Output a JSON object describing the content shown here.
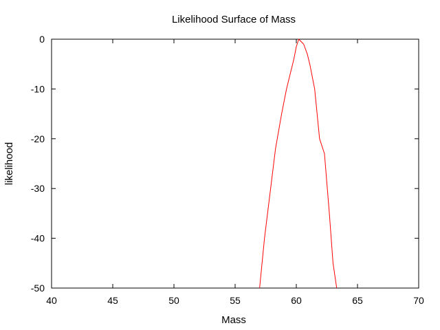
{
  "chart_data": {
    "type": "line",
    "title": "Likelihood Surface of Mass",
    "xlabel": "Mass",
    "ylabel": "likelihood",
    "xlim": [
      40,
      70
    ],
    "ylim": [
      -50,
      0
    ],
    "x_ticks": [
      40,
      45,
      50,
      55,
      60,
      65,
      70
    ],
    "y_ticks": [
      0,
      -10,
      -20,
      -30,
      -40,
      -50
    ],
    "x_tick_labels": [
      "40",
      "45",
      "50",
      "55",
      "60",
      "65",
      "70"
    ],
    "y_tick_labels": [
      "0",
      "-10",
      "-20",
      "-30",
      "-40",
      "-50"
    ],
    "grid": false,
    "series": [
      {
        "color": "#ff0000",
        "x": [
          57.0,
          57.4,
          57.9,
          58.3,
          58.8,
          59.2,
          59.5,
          59.8,
          60.0,
          60.2,
          60.4,
          60.6,
          60.9,
          61.1,
          61.5,
          61.9,
          62.3,
          62.7,
          63.0,
          63.3
        ],
        "y": [
          -50,
          -40,
          -30,
          -22,
          -15,
          -10,
          -7,
          -4,
          -1.5,
          0,
          -0.5,
          -1,
          -3,
          -5,
          -10,
          -20,
          -23,
          -35,
          -45,
          -50
        ]
      }
    ]
  }
}
